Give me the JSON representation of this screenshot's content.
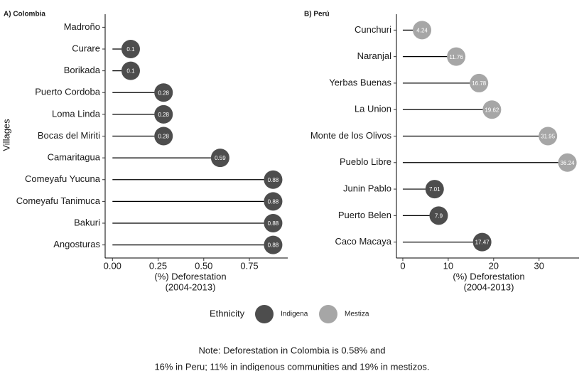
{
  "chart_data": [
    {
      "type": "lollipop",
      "title": "A) Colombia",
      "ylabel": "Villages",
      "xlabel": [
        "(%) Deforestation",
        "(2004-2013)"
      ],
      "categories": [
        "Madroño",
        "Curare",
        "Borikada",
        "Puerto Cordoba",
        "Loma Linda",
        "Bocas del Miriti",
        "Camaritagua",
        "Comeyafu Yucuna",
        "Comeyafu Tanimuca",
        "Bakuri",
        "Angosturas"
      ],
      "series": [
        {
          "name": "Indigena",
          "color": "#4d4d4d",
          "values": [
            null,
            0.1,
            0.1,
            0.28,
            0.28,
            0.28,
            0.59,
            0.88,
            0.88,
            0.88,
            0.88
          ]
        }
      ],
      "xlim": [
        -0.04,
        0.96
      ],
      "xticks": [
        {
          "value": 0,
          "label": "0.00"
        },
        0.25,
        {
          "value": 0.5,
          "label": "0.50"
        },
        0.75
      ]
    },
    {
      "type": "lollipop",
      "title": "B) Perú",
      "xlabel": [
        "(%) Deforestation",
        "(2004-2013)"
      ],
      "categories": [
        "Cunchuri",
        "Naranjal",
        "Yerbas Buenas",
        "La Union",
        "Monte de los Olivos",
        "Pueblo Libre",
        "Junin Pablo",
        "Puerto Belen",
        "Caco Macaya"
      ],
      "series": [
        {
          "name": "Indigena",
          "color": "#4d4d4d",
          "values": [
            null,
            null,
            null,
            null,
            null,
            null,
            7.01,
            7.9,
            17.47
          ]
        },
        {
          "name": "Mestiza",
          "color": "#a6a6a6",
          "values": [
            4.24,
            11.76,
            16.78,
            19.62,
            31.95,
            36.24,
            null,
            null,
            null
          ]
        }
      ],
      "xlim": [
        -1.4,
        38.8
      ],
      "xticks": [
        0,
        10,
        20,
        30
      ]
    }
  ],
  "legend_title": "Ethnicity",
  "note": [
    "Note: Deforestation in Colombia is 0.58% and",
    "16% in Peru; 11% in indigenous communities and 19% in mestizos."
  ]
}
